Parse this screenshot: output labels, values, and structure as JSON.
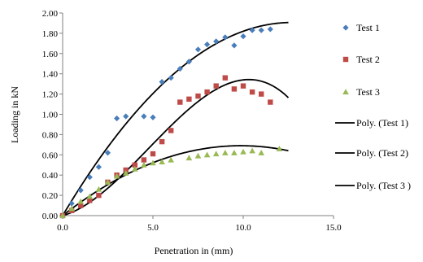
{
  "chart_data": {
    "type": "scatter",
    "xlabel": "Penetration in  (mm)",
    "ylabel": "Loading in kN",
    "xlim": [
      0,
      15
    ],
    "ylim": [
      0,
      2
    ],
    "x_ticks": [
      "0.0",
      "5.0",
      "10.0",
      "15.0"
    ],
    "y_ticks": [
      "0.00",
      "0.20",
      "0.40",
      "0.60",
      "0.80",
      "1.00",
      "1.20",
      "1.40",
      "1.60",
      "1.80",
      "2.00"
    ],
    "grid": false,
    "legend_position": "right",
    "series": [
      {
        "name": "Test 1",
        "marker": "diamond",
        "color": "#4a7ebb",
        "points": [
          [
            0.0,
            0.0
          ],
          [
            0.5,
            0.12
          ],
          [
            1.0,
            0.25
          ],
          [
            1.5,
            0.38
          ],
          [
            2.0,
            0.48
          ],
          [
            2.5,
            0.62
          ],
          [
            3.0,
            0.96
          ],
          [
            3.5,
            0.98
          ],
          [
            4.5,
            0.98
          ],
          [
            5.0,
            0.97
          ],
          [
            5.5,
            1.32
          ],
          [
            6.0,
            1.36
          ],
          [
            6.5,
            1.45
          ],
          [
            7.0,
            1.52
          ],
          [
            7.5,
            1.64
          ],
          [
            8.0,
            1.69
          ],
          [
            8.5,
            1.72
          ],
          [
            9.0,
            1.76
          ],
          [
            9.5,
            1.68
          ],
          [
            10.0,
            1.77
          ],
          [
            10.5,
            1.83
          ],
          [
            11.0,
            1.83
          ],
          [
            11.5,
            1.84
          ]
        ]
      },
      {
        "name": "Test 2",
        "marker": "square",
        "color": "#be4b48",
        "points": [
          [
            0.0,
            0.0
          ],
          [
            0.5,
            0.05
          ],
          [
            1.0,
            0.1
          ],
          [
            1.5,
            0.15
          ],
          [
            2.0,
            0.2
          ],
          [
            2.5,
            0.33
          ],
          [
            3.0,
            0.4
          ],
          [
            3.5,
            0.45
          ],
          [
            4.0,
            0.5
          ],
          [
            4.5,
            0.55
          ],
          [
            5.0,
            0.61
          ],
          [
            5.5,
            0.73
          ],
          [
            6.0,
            0.84
          ],
          [
            6.5,
            1.12
          ],
          [
            7.0,
            1.15
          ],
          [
            7.5,
            1.18
          ],
          [
            8.0,
            1.22
          ],
          [
            8.5,
            1.28
          ],
          [
            9.0,
            1.36
          ],
          [
            9.5,
            1.25
          ],
          [
            10.0,
            1.28
          ],
          [
            10.5,
            1.22
          ],
          [
            11.0,
            1.2
          ],
          [
            11.5,
            1.12
          ]
        ]
      },
      {
        "name": "Test 3",
        "marker": "triangle",
        "color": "#98b954",
        "points": [
          [
            0.0,
            0.0
          ],
          [
            0.5,
            0.07
          ],
          [
            1.0,
            0.14
          ],
          [
            1.5,
            0.19
          ],
          [
            2.0,
            0.26
          ],
          [
            2.5,
            0.33
          ],
          [
            3.0,
            0.39
          ],
          [
            3.5,
            0.42
          ],
          [
            4.0,
            0.46
          ],
          [
            4.5,
            0.5
          ],
          [
            5.0,
            0.52
          ],
          [
            5.5,
            0.53
          ],
          [
            6.0,
            0.55
          ],
          [
            7.0,
            0.57
          ],
          [
            7.5,
            0.59
          ],
          [
            8.0,
            0.6
          ],
          [
            8.5,
            0.61
          ],
          [
            9.0,
            0.62
          ],
          [
            9.5,
            0.62
          ],
          [
            10.0,
            0.63
          ],
          [
            10.5,
            0.64
          ],
          [
            11.0,
            0.62
          ],
          [
            12.0,
            0.66
          ]
        ]
      },
      {
        "name": "Poly. (Test 1)",
        "type": "trendline",
        "color": "#000000",
        "x_range": [
          0,
          12.5
        ],
        "coefficients": [
          0,
          0.3,
          -0.0118
        ]
      },
      {
        "name": "Poly. (Test 2)",
        "type": "trendline",
        "color": "#000000",
        "x_range": [
          0,
          12.5
        ],
        "coefficients": [
          0,
          0.05,
          0.0282,
          -0.00198
        ]
      },
      {
        "name": "Poly. (Test 3 )",
        "type": "trendline",
        "color": "#000000",
        "x_range": [
          0,
          12.5
        ],
        "coefficients": [
          0,
          0.14,
          -0.0071
        ]
      }
    ]
  }
}
